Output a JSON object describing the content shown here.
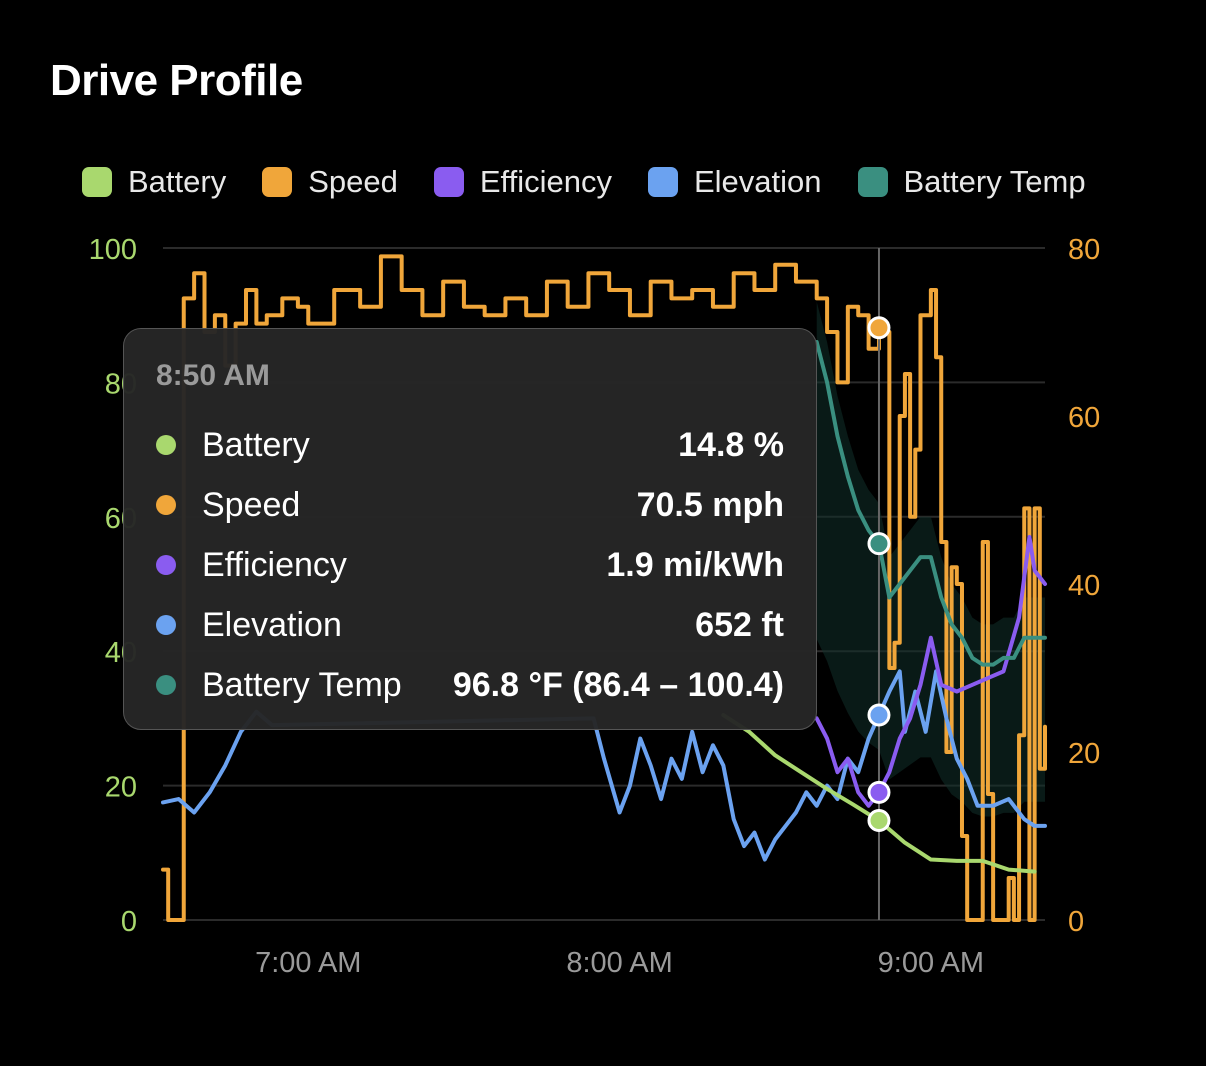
{
  "title": "Drive Profile",
  "chart_data": {
    "type": "line",
    "title": "Drive Profile",
    "x_ticks": [
      "7:00 AM",
      "8:00 AM",
      "9:00 AM"
    ],
    "x_range": [
      "6:32 AM",
      "9:22 AM"
    ],
    "y_left": {
      "range": [
        0,
        100
      ],
      "ticks": [
        "0",
        "20",
        "40",
        "60",
        "80",
        "100"
      ],
      "color": "#a9d86e"
    },
    "y_right": {
      "range": [
        0,
        80
      ],
      "ticks": [
        "0",
        "20",
        "40",
        "60",
        "80"
      ],
      "color": "#f0a63a"
    },
    "grid": true,
    "legend_position": "top",
    "crosshair_time": "8:50 AM",
    "series": [
      {
        "name": "Battery",
        "color": "#a9d86e",
        "axis": "left",
        "unit": "%",
        "points": [
          [
            "8:20 AM",
            30.5
          ],
          [
            "8:25 AM",
            28.0
          ],
          [
            "8:30 AM",
            24.5
          ],
          [
            "8:35 AM",
            22.0
          ],
          [
            "8:40 AM",
            19.5
          ],
          [
            "8:45 AM",
            17.2
          ],
          [
            "8:50 AM",
            14.8
          ],
          [
            "8:55 AM",
            11.5
          ],
          [
            "9:00 AM",
            9.0
          ],
          [
            "9:05 AM",
            8.8
          ],
          [
            "9:10 AM",
            8.8
          ],
          [
            "9:15 AM",
            7.5
          ],
          [
            "9:20 AM",
            7.2
          ]
        ]
      },
      {
        "name": "Speed",
        "color": "#f0a63a",
        "axis": "right",
        "unit": "mph",
        "points": [
          [
            "6:32 AM",
            6
          ],
          [
            "6:33 AM",
            0
          ],
          [
            "6:35 AM",
            0
          ],
          [
            "6:36 AM",
            74
          ],
          [
            "6:38 AM",
            77
          ],
          [
            "6:40 AM",
            70
          ],
          [
            "6:42 AM",
            72
          ],
          [
            "6:44 AM",
            66
          ],
          [
            "6:46 AM",
            71
          ],
          [
            "6:48 AM",
            75
          ],
          [
            "6:50 AM",
            71
          ],
          [
            "6:52 AM",
            72
          ],
          [
            "6:55 AM",
            74
          ],
          [
            "6:58 AM",
            73
          ],
          [
            "7:00 AM",
            71
          ],
          [
            "7:05 AM",
            75
          ],
          [
            "7:10 AM",
            73
          ],
          [
            "7:14 AM",
            79
          ],
          [
            "7:18 AM",
            75
          ],
          [
            "7:22 AM",
            72
          ],
          [
            "7:26 AM",
            76
          ],
          [
            "7:30 AM",
            73
          ],
          [
            "7:34 AM",
            72
          ],
          [
            "7:38 AM",
            74
          ],
          [
            "7:42 AM",
            72
          ],
          [
            "7:46 AM",
            76
          ],
          [
            "7:50 AM",
            73
          ],
          [
            "7:54 AM",
            77
          ],
          [
            "7:58 AM",
            75
          ],
          [
            "8:02 AM",
            72
          ],
          [
            "8:06 AM",
            76
          ],
          [
            "8:10 AM",
            74
          ],
          [
            "8:14 AM",
            75
          ],
          [
            "8:18 AM",
            73
          ],
          [
            "8:22 AM",
            77
          ],
          [
            "8:26 AM",
            75
          ],
          [
            "8:30 AM",
            78
          ],
          [
            "8:34 AM",
            76
          ],
          [
            "8:38 AM",
            74
          ],
          [
            "8:40 AM",
            70
          ],
          [
            "8:42 AM",
            64
          ],
          [
            "8:44 AM",
            73
          ],
          [
            "8:46 AM",
            72
          ],
          [
            "8:48 AM",
            68
          ],
          [
            "8:50 AM",
            70.5
          ],
          [
            "8:51 AM",
            70
          ],
          [
            "8:52 AM",
            30
          ],
          [
            "8:53 AM",
            33
          ],
          [
            "8:54 AM",
            60
          ],
          [
            "8:55 AM",
            65
          ],
          [
            "8:56 AM",
            48
          ],
          [
            "8:57 AM",
            56
          ],
          [
            "8:58 AM",
            72
          ],
          [
            "9:00 AM",
            75
          ],
          [
            "9:01 AM",
            67
          ],
          [
            "9:02 AM",
            45
          ],
          [
            "9:03 AM",
            20
          ],
          [
            "9:04 AM",
            42
          ],
          [
            "9:05 AM",
            40
          ],
          [
            "9:06 AM",
            10
          ],
          [
            "9:07 AM",
            0
          ],
          [
            "9:09 AM",
            0
          ],
          [
            "9:10 AM",
            45
          ],
          [
            "9:11 AM",
            15
          ],
          [
            "9:12 AM",
            0
          ],
          [
            "9:14 AM",
            0
          ],
          [
            "9:15 AM",
            5
          ],
          [
            "9:16 AM",
            0
          ],
          [
            "9:17 AM",
            22
          ],
          [
            "9:18 AM",
            49
          ],
          [
            "9:19 AM",
            0
          ],
          [
            "9:20 AM",
            49
          ],
          [
            "9:21 AM",
            18
          ],
          [
            "9:22 AM",
            23
          ]
        ]
      },
      {
        "name": "Efficiency",
        "color": "#8a5cf0",
        "axis": "left",
        "unit": "mi/kWh",
        "points": [
          [
            "8:38 AM",
            30
          ],
          [
            "8:40 AM",
            27
          ],
          [
            "8:42 AM",
            22
          ],
          [
            "8:44 AM",
            24
          ],
          [
            "8:46 AM",
            19
          ],
          [
            "8:48 AM",
            17
          ],
          [
            "8:50 AM",
            19
          ],
          [
            "8:52 AM",
            22
          ],
          [
            "8:54 AM",
            27
          ],
          [
            "8:56 AM",
            30
          ],
          [
            "8:58 AM",
            35
          ],
          [
            "9:00 AM",
            42
          ],
          [
            "9:02 AM",
            35
          ],
          [
            "9:05 AM",
            34
          ],
          [
            "9:08 AM",
            35
          ],
          [
            "9:11 AM",
            36
          ],
          [
            "9:14 AM",
            37
          ],
          [
            "9:17 AM",
            45
          ],
          [
            "9:19 AM",
            57
          ],
          [
            "9:20 AM",
            52
          ],
          [
            "9:22 AM",
            50
          ]
        ]
      },
      {
        "name": "Elevation",
        "color": "#6ba2f0",
        "axis": "left",
        "unit": "ft",
        "points": [
          [
            "6:32 AM",
            17.5
          ],
          [
            "6:35 AM",
            18
          ],
          [
            "6:38 AM",
            16
          ],
          [
            "6:41 AM",
            19
          ],
          [
            "6:44 AM",
            23
          ],
          [
            "6:47 AM",
            28
          ],
          [
            "6:50 AM",
            31
          ],
          [
            "6:53 AM",
            29
          ],
          [
            "7:55 AM",
            30
          ],
          [
            "7:57 AM",
            24
          ],
          [
            "8:00 AM",
            16
          ],
          [
            "8:02 AM",
            20
          ],
          [
            "8:04 AM",
            27
          ],
          [
            "8:06 AM",
            23
          ],
          [
            "8:08 AM",
            18
          ],
          [
            "8:10 AM",
            24
          ],
          [
            "8:12 AM",
            21
          ],
          [
            "8:14 AM",
            28
          ],
          [
            "8:16 AM",
            22
          ],
          [
            "8:18 AM",
            26
          ],
          [
            "8:20 AM",
            23
          ],
          [
            "8:22 AM",
            15
          ],
          [
            "8:24 AM",
            11
          ],
          [
            "8:26 AM",
            13
          ],
          [
            "8:28 AM",
            9
          ],
          [
            "8:30 AM",
            12
          ],
          [
            "8:32 AM",
            14
          ],
          [
            "8:34 AM",
            16
          ],
          [
            "8:36 AM",
            19
          ],
          [
            "8:38 AM",
            17
          ],
          [
            "8:40 AM",
            20
          ],
          [
            "8:42 AM",
            18
          ],
          [
            "8:44 AM",
            24
          ],
          [
            "8:46 AM",
            22
          ],
          [
            "8:48 AM",
            27
          ],
          [
            "8:50 AM",
            30.5
          ],
          [
            "8:52 AM",
            34
          ],
          [
            "8:54 AM",
            37
          ],
          [
            "8:55 AM",
            28
          ],
          [
            "8:57 AM",
            34
          ],
          [
            "8:59 AM",
            28
          ],
          [
            "9:01 AM",
            37
          ],
          [
            "9:03 AM",
            30
          ],
          [
            "9:05 AM",
            24
          ],
          [
            "9:07 AM",
            21
          ],
          [
            "9:09 AM",
            17
          ],
          [
            "9:12 AM",
            17
          ],
          [
            "9:15 AM",
            18
          ],
          [
            "9:18 AM",
            15
          ],
          [
            "9:20 AM",
            14
          ],
          [
            "9:22 AM",
            14
          ]
        ]
      },
      {
        "name": "Battery Temp",
        "color": "#3a8f80",
        "axis": "left",
        "unit": "°F",
        "points": [
          [
            "8:38 AM",
            86
          ],
          [
            "8:40 AM",
            80
          ],
          [
            "8:42 AM",
            72
          ],
          [
            "8:44 AM",
            66
          ],
          [
            "8:46 AM",
            61
          ],
          [
            "8:48 AM",
            58
          ],
          [
            "8:50 AM",
            56
          ],
          [
            "8:52 AM",
            48
          ],
          [
            "8:54 AM",
            50
          ],
          [
            "8:56 AM",
            52
          ],
          [
            "8:58 AM",
            54
          ],
          [
            "9:00 AM",
            54
          ],
          [
            "9:02 AM",
            48
          ],
          [
            "9:04 AM",
            44
          ],
          [
            "9:06 AM",
            42
          ],
          [
            "9:08 AM",
            39
          ],
          [
            "9:10 AM",
            38
          ],
          [
            "9:12 AM",
            38
          ],
          [
            "9:14 AM",
            39
          ],
          [
            "9:16 AM",
            39
          ],
          [
            "9:18 AM",
            42
          ],
          [
            "9:20 AM",
            42
          ],
          [
            "9:22 AM",
            42
          ]
        ]
      }
    ]
  },
  "tooltip": {
    "time": "8:50 AM",
    "rows": [
      {
        "label": "Battery",
        "value": "14.8 %",
        "color": "#a9d86e"
      },
      {
        "label": "Speed",
        "value": "70.5 mph",
        "color": "#f0a63a"
      },
      {
        "label": "Efficiency",
        "value": "1.9 mi/kWh",
        "color": "#8a5cf0"
      },
      {
        "label": "Elevation",
        "value": "652 ft",
        "color": "#6ba2f0"
      },
      {
        "label": "Battery Temp",
        "value": "96.8 °F (86.4 – 100.4)",
        "color": "#3a8f80"
      }
    ]
  }
}
